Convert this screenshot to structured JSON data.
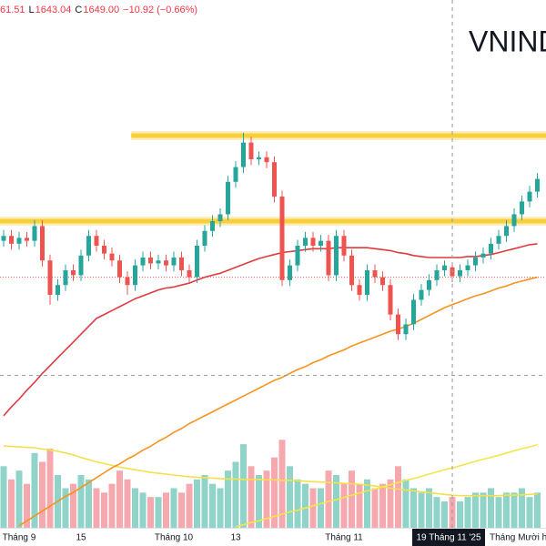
{
  "chart_data": {
    "type": "candlestick",
    "title": "VNIND",
    "header": [
      {
        "text": "61.51",
        "color": "#f23645"
      },
      {
        "text": "L",
        "color": "#131722"
      },
      {
        "text": "1643.04",
        "color": "#f23645"
      },
      {
        "text": "C",
        "color": "#131722"
      },
      {
        "text": "1649.00",
        "color": "#f23645"
      },
      {
        "text": "−10.92 (−0.66%)",
        "color": "#f23645"
      }
    ],
    "categories": [
      null,
      null,
      "Tháng 9",
      null,
      null,
      null,
      null,
      null,
      null,
      null,
      "15",
      null,
      null,
      null,
      null,
      null,
      null,
      null,
      null,
      null,
      null,
      null,
      "Tháng 10",
      null,
      null,
      null,
      null,
      null,
      null,
      null,
      "13",
      null,
      null,
      null,
      null,
      null,
      null,
      null,
      null,
      null,
      null,
      null,
      null,
      null,
      "Tháng 11",
      null,
      null,
      null,
      null,
      null,
      null,
      null,
      null,
      null,
      null,
      null,
      null,
      null,
      null,
      null,
      null,
      null,
      null,
      null,
      null,
      null,
      null,
      "Tháng Mười hai",
      null,
      null
    ],
    "open": [
      1685,
      1690,
      1682,
      1688,
      1685,
      1700,
      1665,
      1630,
      1640,
      1655,
      1650,
      1670,
      1690,
      1680,
      1672,
      1665,
      1648,
      1640,
      1660,
      1668,
      1662,
      1665,
      1660,
      1668,
      1655,
      1648,
      1680,
      1695,
      1705,
      1712,
      1745,
      1760,
      1785,
      1768,
      1770,
      1765,
      1730,
      1645,
      1660,
      1680,
      1688,
      1680,
      1685,
      1650,
      1690,
      1670,
      1640,
      1630,
      1655,
      1648,
      1640,
      1610,
      1590,
      1600,
      1625,
      1635,
      1645,
      1655,
      1658,
      1649,
      1655,
      1660,
      1668,
      1672,
      1682,
      1690,
      1700,
      1712,
      1725,
      1735
    ],
    "high": [
      1696,
      1696,
      1694,
      1694,
      1706,
      1706,
      1671,
      1646,
      1661,
      1661,
      1676,
      1696,
      1696,
      1686,
      1678,
      1671,
      1654,
      1666,
      1674,
      1674,
      1671,
      1671,
      1674,
      1674,
      1661,
      1686,
      1701,
      1711,
      1718,
      1751,
      1766,
      1795,
      1791,
      1776,
      1776,
      1771,
      1736,
      1666,
      1686,
      1694,
      1694,
      1691,
      1691,
      1696,
      1696,
      1676,
      1646,
      1661,
      1661,
      1654,
      1646,
      1616,
      1606,
      1631,
      1641,
      1651,
      1661,
      1665,
      1661.51,
      1661,
      1666,
      1674,
      1678,
      1688,
      1696,
      1706,
      1718,
      1731,
      1741,
      1754
    ],
    "low": [
      1679,
      1676,
      1676,
      1679,
      1679,
      1659,
      1620,
      1624,
      1634,
      1644,
      1644,
      1664,
      1674,
      1666,
      1659,
      1642,
      1630,
      1634,
      1654,
      1656,
      1656,
      1654,
      1654,
      1649,
      1642,
      1642,
      1674,
      1689,
      1699,
      1706,
      1739,
      1754,
      1762,
      1762,
      1759,
      1724,
      1639,
      1639,
      1654,
      1674,
      1674,
      1674,
      1644,
      1644,
      1664,
      1634,
      1624,
      1624,
      1642,
      1634,
      1604,
      1584,
      1584,
      1594,
      1619,
      1629,
      1639,
      1649,
      1643.04,
      1643,
      1649,
      1654,
      1662,
      1666,
      1676,
      1684,
      1694,
      1706,
      1719,
      1729
    ],
    "close": [
      1690,
      1682,
      1688,
      1685,
      1700,
      1665,
      1630,
      1640,
      1655,
      1650,
      1670,
      1690,
      1680,
      1672,
      1665,
      1648,
      1640,
      1660,
      1668,
      1662,
      1665,
      1660,
      1668,
      1655,
      1648,
      1680,
      1695,
      1705,
      1712,
      1745,
      1760,
      1785,
      1768,
      1770,
      1765,
      1730,
      1645,
      1660,
      1680,
      1688,
      1680,
      1685,
      1650,
      1690,
      1670,
      1640,
      1630,
      1655,
      1648,
      1640,
      1610,
      1590,
      1600,
      1625,
      1635,
      1645,
      1655,
      1659.92,
      1649,
      1655,
      1660,
      1668,
      1672,
      1682,
      1690,
      1700,
      1712,
      1725,
      1735,
      1748
    ],
    "volume": [
      1400,
      1100,
      1300,
      1000,
      1700,
      1500,
      1800,
      1200,
      900,
      1000,
      1200,
      1100,
      900,
      800,
      1000,
      1300,
      1100,
      900,
      800,
      700,
      700,
      800,
      900,
      800,
      1000,
      1100,
      1200,
      1000,
      900,
      1300,
      1500,
      1900,
      1400,
      1200,
      1300,
      1600,
      2000,
      1400,
      1100,
      1000,
      900,
      900,
      1300,
      1200,
      1000,
      1300,
      1000,
      1100,
      900,
      1000,
      1100,
      1400,
      1100,
      900,
      800,
      900,
      700,
      600,
      700,
      600,
      700,
      800,
      800,
      900,
      700,
      800,
      800,
      900,
      700,
      800
    ],
    "up_color": "#26a69a",
    "down_color": "#ef5350",
    "volume_up_color": "#8fd3c9",
    "volume_down_color": "#f5a8ad",
    "ylim": [
      1393,
      1930
    ],
    "volume_ylim": [
      0,
      12000
    ],
    "overlays": [
      {
        "color": "#e0393e",
        "values": [
          1507,
          1516,
          1524,
          1533,
          1541,
          1550,
          1558,
          1566,
          1574,
          1582,
          1590,
          1598,
          1606,
          1610,
          1614,
          1618,
          1622,
          1626,
          1629,
          1632,
          1635,
          1637,
          1638,
          1640,
          1642,
          1645,
          1648,
          1650,
          1652,
          1655,
          1658,
          1661,
          1664,
          1667,
          1669,
          1671,
          1673,
          1674,
          1675,
          1676,
          1677,
          1677,
          1677,
          1678,
          1678,
          1678,
          1678,
          1678,
          1677,
          1676,
          1675,
          1673,
          1672,
          1670,
          1669,
          1668,
          1668,
          1668,
          1668,
          1668,
          1669,
          1669,
          1670,
          1671,
          1673,
          1675,
          1677,
          1679,
          1681,
          1682
        ]
      },
      {
        "color": "#f7931e",
        "values": [
          null,
          null,
          1395,
          1400,
          1405,
          1410,
          1415,
          1420,
          1425,
          1429,
          1434,
          1439,
          1444,
          1449,
          1454,
          1458,
          1463,
          1467,
          1472,
          1476,
          1481,
          1485,
          1490,
          1494,
          1499,
          1503,
          1507,
          1511,
          1515,
          1519,
          1523,
          1527,
          1531,
          1535,
          1539,
          1543,
          1546,
          1550,
          1554,
          1557,
          1561,
          1564,
          1568,
          1571,
          1574,
          1578,
          1581,
          1584,
          1587,
          1590,
          1593,
          1595,
          1598,
          1601,
          1605,
          1609,
          1613,
          1617,
          1620,
          1623,
          1626,
          1629,
          1631,
          1634,
          1637,
          1639,
          1642,
          1644,
          1646,
          1648
        ]
      }
    ],
    "volume_overlays": [
      {
        "color": "#f5e04a",
        "values": [
          1860,
          1850,
          1840,
          1830,
          1820,
          1790,
          1770,
          1740,
          1700,
          1660,
          1600,
          1550,
          1500,
          1460,
          1420,
          1380,
          1350,
          1320,
          1290,
          1260,
          1240,
          1220,
          1200,
          1180,
          1160,
          1150,
          1140,
          1130,
          1120,
          1110,
          1110,
          1100,
          1100,
          1100,
          1090,
          1090,
          1080,
          1080,
          1070,
          1060,
          1050,
          1040,
          1030,
          1020,
          1010,
          1000,
          990,
          970,
          950,
          930,
          900,
          880,
          860,
          840,
          820,
          800,
          780,
          760,
          740,
          730,
          730,
          730,
          730,
          730,
          730,
          740,
          740,
          750,
          760,
          770
        ]
      },
      {
        "color": "#f2e64a",
        "values": [
          null,
          null,
          null,
          null,
          null,
          null,
          null,
          null,
          null,
          null,
          null,
          null,
          null,
          null,
          null,
          null,
          null,
          null,
          null,
          null,
          null,
          null,
          null,
          null,
          null,
          null,
          null,
          null,
          null,
          null,
          20,
          70,
          120,
          160,
          210,
          260,
          310,
          360,
          400,
          450,
          500,
          550,
          600,
          640,
          690,
          740,
          790,
          840,
          880,
          930,
          980,
          1030,
          1080,
          1120,
          1170,
          1220,
          1270,
          1320,
          1360,
          1410,
          1460,
          1510,
          1560,
          1600,
          1650,
          1700,
          1750,
          1800,
          1840,
          1890
        ]
      }
    ],
    "levels": [
      {
        "value": 1792,
        "start": 17,
        "color": "#f9cf3c"
      },
      {
        "value": 1705,
        "start": 0,
        "color": "#f9cf3c"
      }
    ],
    "reference_line": {
      "value": 1648,
      "color": "#ef5350"
    },
    "crosshair": {
      "index": 58,
      "value": 1548,
      "label": "19 Tháng 11 '25"
    }
  }
}
